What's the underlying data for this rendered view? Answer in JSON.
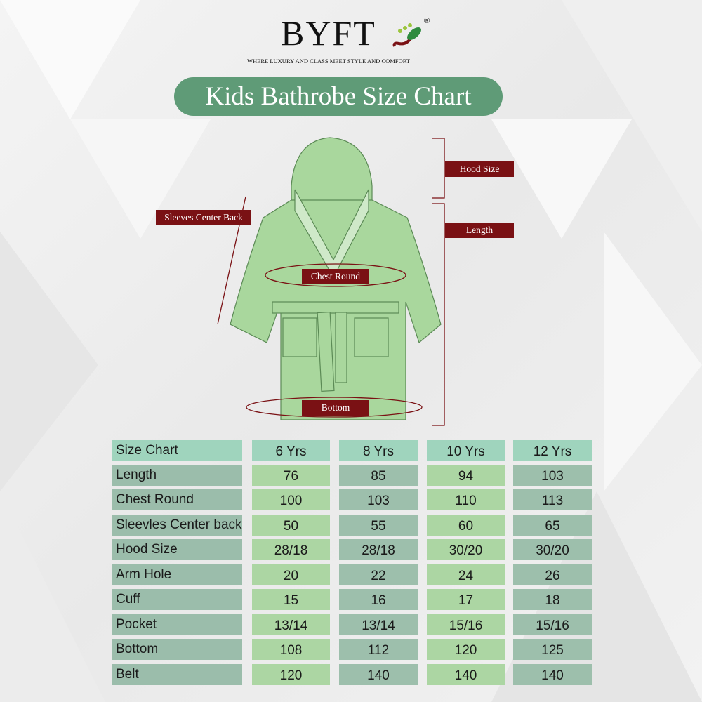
{
  "brand": {
    "name": "BYFT",
    "registered": "®",
    "tagline": "WHERE LUXURY AND CLASS MEET STYLE AND COMFORT"
  },
  "title": "Kids Bathrobe Size Chart",
  "diagram_labels": {
    "hood": "Hood Size",
    "length": "Length",
    "sleeves": "Sleeves Center Back",
    "chest": "Chest Round",
    "bottom": "Bottom"
  },
  "colors": {
    "title_bg": "#5f9b77",
    "label_bg": "#7a1114",
    "robe": "#a9d79d",
    "header": "#9fd4bd",
    "light_col": "#acd6a3",
    "dark_col": "#9dbfac"
  },
  "table": {
    "headers": [
      "Size Chart",
      "6 Yrs",
      "8 Yrs",
      "10 Yrs",
      "12 Yrs"
    ],
    "rows": [
      [
        "Length",
        "76",
        "85",
        "94",
        "103"
      ],
      [
        "Chest Round",
        "100",
        "103",
        "110",
        "113"
      ],
      [
        "Sleevles Center back",
        "50",
        "55",
        "60",
        "65"
      ],
      [
        "Hood Size",
        "28/18",
        "28/18",
        "30/20",
        "30/20"
      ],
      [
        "Arm Hole",
        "20",
        "22",
        "24",
        "26"
      ],
      [
        "Cuff",
        "15",
        "16",
        "17",
        "18"
      ],
      [
        "Pocket",
        "13/14",
        "13/14",
        "15/16",
        "15/16"
      ],
      [
        "Bottom",
        "108",
        "112",
        "120",
        "125"
      ],
      [
        "Belt",
        "120",
        "140",
        "140",
        "140"
      ]
    ]
  }
}
